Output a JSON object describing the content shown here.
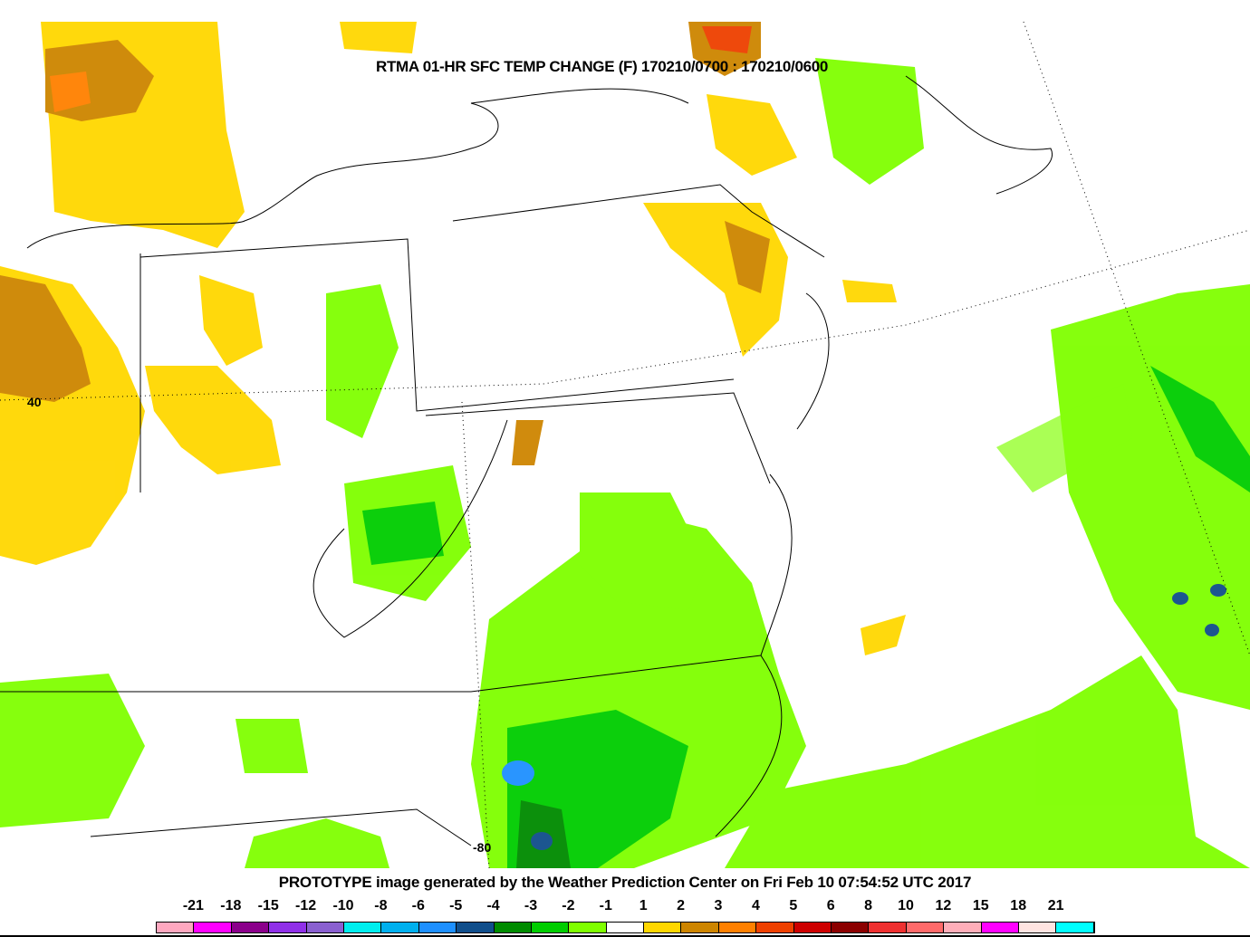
{
  "title": "RTMA 01-HR SFC TEMP CHANGE (F) 170210/0700 : 170210/0600",
  "footer": "PROTOTYPE image generated by the Weather Prediction Center on Fri Feb 10 07:54:52 UTC 2017",
  "map_labels": {
    "lat": "40",
    "lon": "-80"
  },
  "legend": {
    "labels": [
      "-21",
      "-18",
      "-15",
      "-12",
      "-10",
      "-8",
      "-6",
      "-5",
      "-4",
      "-3",
      "-2",
      "-1",
      "1",
      "2",
      "3",
      "4",
      "5",
      "6",
      "8",
      "10",
      "12",
      "15",
      "18",
      "21"
    ],
    "colors": [
      "#FFA8C0",
      "#FF00FF",
      "#8B008B",
      "#9030E8",
      "#8A60D0",
      "#00EEEE",
      "#00B0EE",
      "#1E90FF",
      "#104E8B",
      "#008B00",
      "#00CD00",
      "#7FFF00",
      "#FFFFFF",
      "#FFD700",
      "#CD8500",
      "#FF8000",
      "#EE4000",
      "#CD0000",
      "#8B0000",
      "#EE3030",
      "#FF6A6A",
      "#FFAEB9",
      "#FF00FF",
      "#FFE4E1",
      "#00FFFF"
    ]
  }
}
